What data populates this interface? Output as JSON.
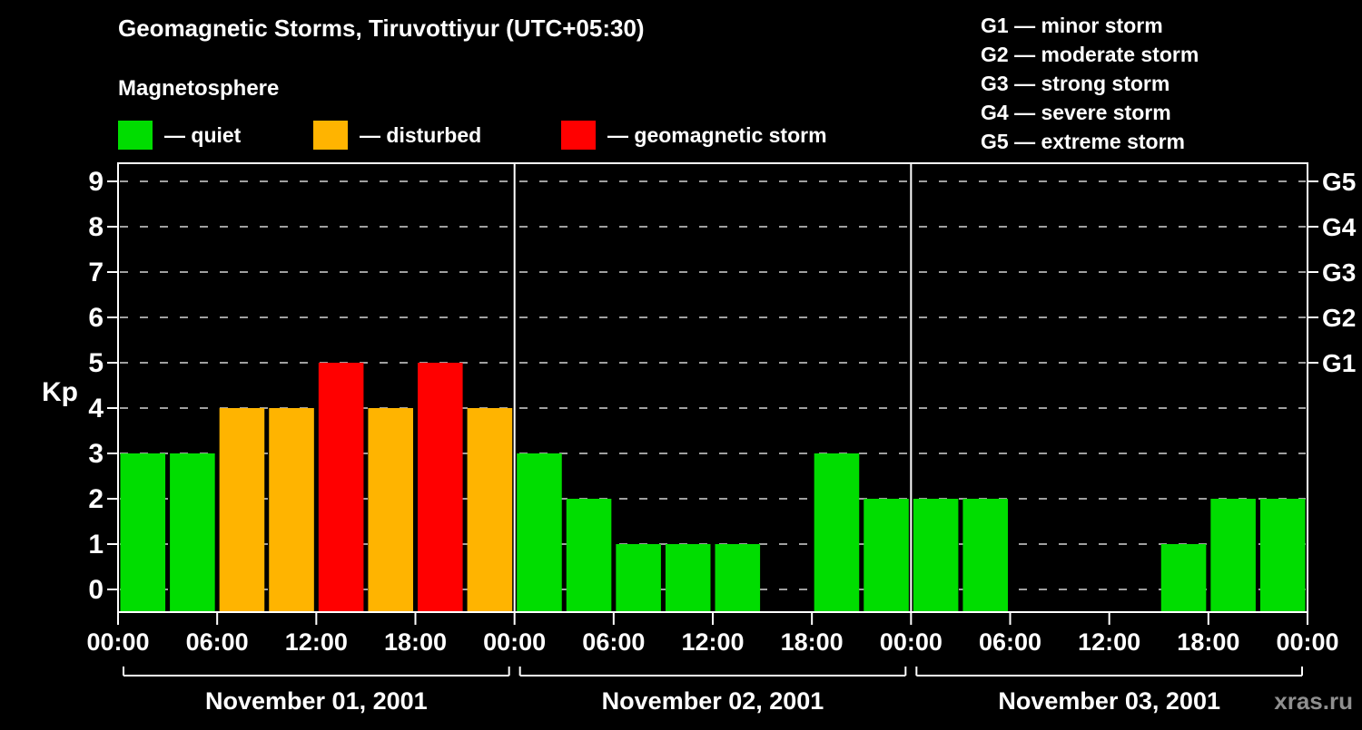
{
  "title": "Geomagnetic Storms, Tiruvottiyur (UTC+05:30)",
  "legend": {
    "heading": "Magnetosphere",
    "items": [
      {
        "label": "— quiet",
        "color": "#00dd00"
      },
      {
        "label": "— disturbed",
        "color": "#ffb400"
      },
      {
        "label": "— geomagnetic storm",
        "color": "#ff0000"
      }
    ]
  },
  "g_legend": [
    "G1 — minor storm",
    "G2 — moderate storm",
    "G3 — strong storm",
    "G4 — severe storm",
    "G5 — extreme storm"
  ],
  "watermark": "xras.ru",
  "chart_data": {
    "type": "bar",
    "ylabel": "Kp",
    "ylim": [
      0,
      9
    ],
    "y_ticks": [
      0,
      1,
      2,
      3,
      4,
      5,
      6,
      7,
      8,
      9
    ],
    "right_axis_labels": [
      {
        "kp": 5,
        "label": "G1"
      },
      {
        "kp": 6,
        "label": "G2"
      },
      {
        "kp": 7,
        "label": "G3"
      },
      {
        "kp": 8,
        "label": "G4"
      },
      {
        "kp": 9,
        "label": "G5"
      }
    ],
    "x_tick_labels": [
      "00:00",
      "06:00",
      "12:00",
      "18:00",
      "00:00",
      "06:00",
      "12:00",
      "18:00",
      "00:00",
      "06:00",
      "12:00",
      "18:00",
      "00:00"
    ],
    "bar_interval_hours": 3,
    "bars_per_day": 8,
    "days": [
      {
        "label": "November 01, 2001",
        "kp": [
          3,
          3,
          4,
          4,
          5,
          4,
          5,
          4
        ]
      },
      {
        "label": "November 02, 2001",
        "kp": [
          3,
          2,
          1,
          1,
          1,
          0,
          3,
          2
        ]
      },
      {
        "label": "November 03, 2001",
        "kp": [
          2,
          2,
          0,
          0,
          0,
          1,
          2,
          2
        ]
      }
    ],
    "colors": {
      "quiet": "#00dd00",
      "disturbed": "#ffb400",
      "storm": "#ff0000"
    },
    "color_rules": {
      "disturbed_at": 4,
      "storm_min": 5
    },
    "grid": "dashed"
  }
}
